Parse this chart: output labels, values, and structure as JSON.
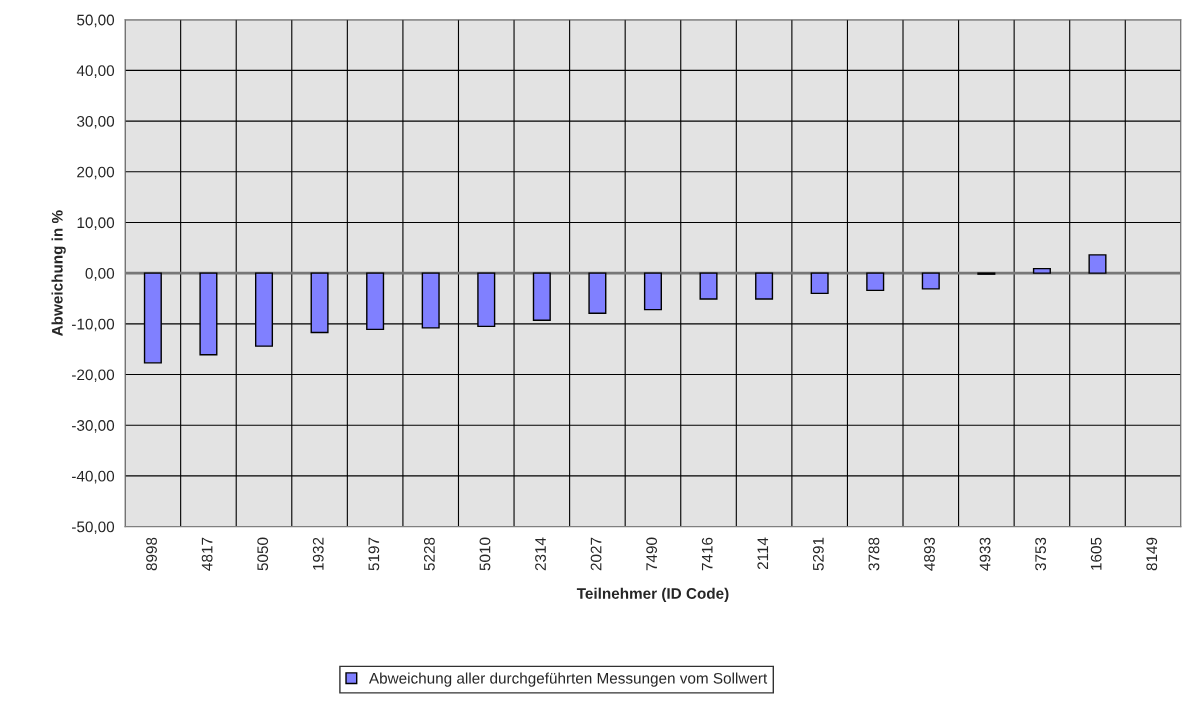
{
  "chart_data": {
    "type": "bar",
    "xlabel": "Teilnehmer (ID Code)",
    "ylabel": "Abweichung in %",
    "categories": [
      "8998",
      "4817",
      "5050",
      "1932",
      "5197",
      "5228",
      "5010",
      "2314",
      "2027",
      "7490",
      "7416",
      "2114",
      "5291",
      "3788",
      "4893",
      "4933",
      "3753",
      "1605",
      "8149"
    ],
    "series": [
      {
        "name": "Abweichung aller durchgeführten Messungen vom Sollwert",
        "color": "#8080ff",
        "values": [
          -17.7,
          -16.1,
          -14.4,
          -11.7,
          -11.1,
          -10.8,
          -10.5,
          -9.3,
          -7.9,
          -7.2,
          -5.1,
          -5.1,
          -4.0,
          -3.4,
          -3.1,
          -0.2,
          0.9,
          3.6,
          null
        ]
      }
    ],
    "ylim": [
      -50,
      50
    ],
    "yticks": [
      {
        "value": -50,
        "label": "-50,00"
      },
      {
        "value": -40,
        "label": "-40,00"
      },
      {
        "value": -30,
        "label": "-30,00"
      },
      {
        "value": -20,
        "label": "-20,00"
      },
      {
        "value": -10,
        "label": "-10,00"
      },
      {
        "value": 0,
        "label": "0,00"
      },
      {
        "value": 10,
        "label": "10,00"
      },
      {
        "value": 20,
        "label": "20,00"
      },
      {
        "value": 30,
        "label": "30,00"
      },
      {
        "value": 40,
        "label": "40,00"
      },
      {
        "value": 50,
        "label": "50,00"
      }
    ],
    "grid": true,
    "legend": "bottom"
  }
}
